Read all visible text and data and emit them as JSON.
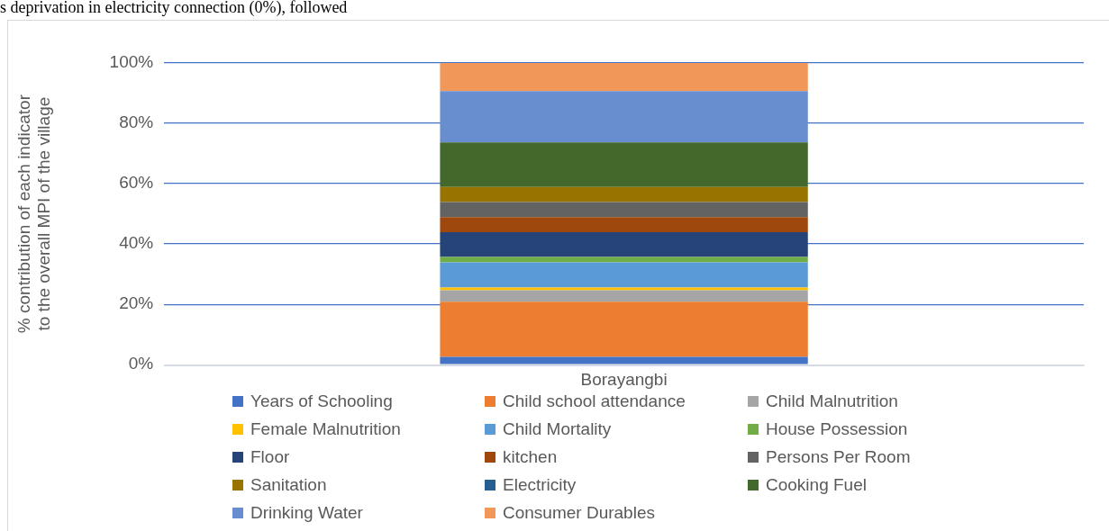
{
  "chart_data": {
    "type": "bar",
    "stacked": true,
    "ylabel": "% contribution of each indicator to the overall MPI of the village",
    "annotations": [
      "s deprivation in electricity connection (0%), followed"
    ],
    "categories": [
      "Borayangbi"
    ],
    "ylim": [
      0,
      100
    ],
    "yticks": [
      {
        "value": 0,
        "label": "0%"
      },
      {
        "value": 20,
        "label": "20%"
      },
      {
        "value": 40,
        "label": "40%"
      },
      {
        "value": 60,
        "label": "60%"
      },
      {
        "value": 80,
        "label": "80%"
      },
      {
        "value": 100,
        "label": "100%"
      }
    ],
    "grid": "y",
    "legend": "bottom",
    "series": [
      {
        "name": "Years of Schooling",
        "color": "#4472c4",
        "values": [
          2.6
        ]
      },
      {
        "name": "Child school attendance",
        "color": "#ed7d31",
        "values": [
          18.3
        ]
      },
      {
        "name": "Child Malnutrition",
        "color": "#a5a5a5",
        "values": [
          3.8
        ]
      },
      {
        "name": "Female Malnutrition",
        "color": "#ffc000",
        "values": [
          0.9
        ]
      },
      {
        "name": "Child Mortality",
        "color": "#5b9bd5",
        "values": [
          8.3
        ]
      },
      {
        "name": "House Possession",
        "color": "#70ad47",
        "values": [
          1.8
        ]
      },
      {
        "name": "Floor",
        "color": "#264478",
        "values": [
          8.2
        ]
      },
      {
        "name": "kitchen",
        "color": "#9e480e",
        "values": [
          5.0
        ]
      },
      {
        "name": "Persons Per Room",
        "color": "#636363",
        "values": [
          5.0
        ]
      },
      {
        "name": "Sanitation",
        "color": "#997300",
        "values": [
          5.0
        ]
      },
      {
        "name": "Electricity",
        "color": "#255e91",
        "values": [
          0
        ]
      },
      {
        "name": "Cooking Fuel",
        "color": "#43682b",
        "values": [
          14.8
        ]
      },
      {
        "name": "Drinking Water",
        "color": "#698ed0",
        "values": [
          17.0
        ]
      },
      {
        "name": "Consumer Durables",
        "color": "#f1975a",
        "values": [
          9.3
        ]
      }
    ]
  }
}
